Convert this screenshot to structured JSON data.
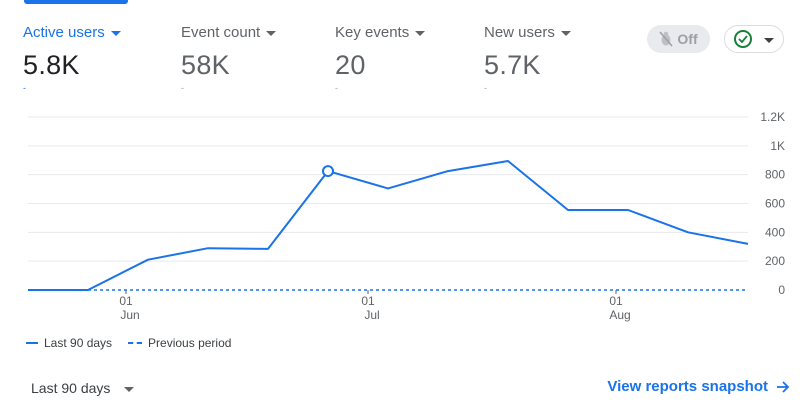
{
  "metrics": [
    {
      "label": "Active users",
      "value": "5.8K",
      "delta": "-",
      "active": true
    },
    {
      "label": "Event count",
      "value": "58K",
      "delta": "-",
      "active": false
    },
    {
      "label": "Key events",
      "value": "20",
      "delta": "-",
      "active": false
    },
    {
      "label": "New users",
      "value": "5.7K",
      "delta": "-",
      "active": false
    }
  ],
  "controls": {
    "insights_toggle_label": "Off",
    "insights_icon": "bug-off-icon",
    "status_icon": "check-circle-icon"
  },
  "chart_data": {
    "type": "line",
    "yticks": [
      "1.2K",
      "1K",
      "800",
      "600",
      "400",
      "200",
      "0"
    ],
    "ylim": [
      0,
      1200
    ],
    "grid": true,
    "xtick_labels": [
      {
        "top": "01",
        "bottom": "Jun"
      },
      {
        "top": "01",
        "bottom": "Jul"
      },
      {
        "top": "01",
        "bottom": "Aug"
      }
    ],
    "series": [
      {
        "name": "Last 90 days",
        "style": "solid",
        "color": "#1a73e8",
        "values": [
          0,
          0,
          210,
          290,
          285,
          825,
          705,
          825,
          895,
          555,
          555,
          400,
          320
        ]
      },
      {
        "name": "Previous period",
        "style": "dashed",
        "color": "#1a73e8",
        "values": [
          0,
          0,
          0,
          0,
          0,
          0,
          0,
          0,
          0,
          0,
          0,
          0,
          0
        ]
      }
    ],
    "highlight_point_index": 5,
    "legend_position": "bottom-left"
  },
  "footer": {
    "range_label": "Last 90 days",
    "snapshot_link": "View reports snapshot"
  }
}
